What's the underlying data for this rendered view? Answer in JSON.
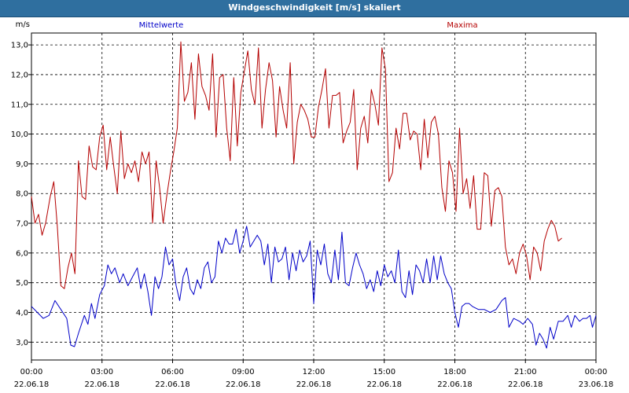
{
  "window": {
    "title": "Windgeschwindigkeit [m/s] skaliert"
  },
  "chart_data": {
    "type": "line",
    "title": "Windgeschwindigkeit [m/s] skaliert",
    "ylabel": "m/s",
    "xlabel": "",
    "ylim": [
      2.4,
      13.4
    ],
    "xlim_hours": [
      0,
      24
    ],
    "grid": true,
    "yticks": [
      "3,0",
      "4,0",
      "5,0",
      "6,0",
      "7,0",
      "8,0",
      "9,0",
      "10,0",
      "11,0",
      "12,0",
      "13,0"
    ],
    "xticks": [
      {
        "time": "00:00",
        "date": "22.06.18"
      },
      {
        "time": "03:00",
        "date": "22.06.18"
      },
      {
        "time": "06:00",
        "date": "22.06.18"
      },
      {
        "time": "09:00",
        "date": "22.06.18"
      },
      {
        "time": "12:00",
        "date": "22.06.18"
      },
      {
        "time": "15:00",
        "date": "22.06.18"
      },
      {
        "time": "18:00",
        "date": "22.06.18"
      },
      {
        "time": "21:00",
        "date": "22.06.18"
      },
      {
        "time": "00:00",
        "date": "23.06.18"
      }
    ],
    "series": [
      {
        "name": "Mittelwerte",
        "color": "#0000c8",
        "points": [
          [
            0,
            4.2
          ],
          [
            0.25,
            4.0
          ],
          [
            0.5,
            3.8
          ],
          [
            0.75,
            3.9
          ],
          [
            1,
            4.4
          ],
          [
            1.25,
            4.1
          ],
          [
            1.5,
            3.8
          ],
          [
            1.67,
            2.9
          ],
          [
            1.83,
            2.85
          ],
          [
            2,
            3.3
          ],
          [
            2.25,
            3.9
          ],
          [
            2.4,
            3.6
          ],
          [
            2.55,
            4.3
          ],
          [
            2.7,
            3.8
          ],
          [
            2.9,
            4.6
          ],
          [
            3.1,
            4.9
          ],
          [
            3.25,
            5.6
          ],
          [
            3.4,
            5.3
          ],
          [
            3.55,
            5.5
          ],
          [
            3.75,
            5.0
          ],
          [
            3.9,
            5.3
          ],
          [
            4.1,
            4.9
          ],
          [
            4.3,
            5.2
          ],
          [
            4.5,
            5.5
          ],
          [
            4.65,
            4.8
          ],
          [
            4.8,
            5.3
          ],
          [
            4.95,
            4.7
          ],
          [
            5.1,
            3.9
          ],
          [
            5.25,
            5.2
          ],
          [
            5.4,
            4.8
          ],
          [
            5.55,
            5.2
          ],
          [
            5.7,
            6.2
          ],
          [
            5.85,
            5.6
          ],
          [
            6.0,
            5.8
          ],
          [
            6.15,
            4.9
          ],
          [
            6.3,
            4.4
          ],
          [
            6.45,
            5.2
          ],
          [
            6.6,
            5.5
          ],
          [
            6.75,
            4.8
          ],
          [
            6.9,
            4.6
          ],
          [
            7.05,
            5.1
          ],
          [
            7.2,
            4.8
          ],
          [
            7.35,
            5.5
          ],
          [
            7.5,
            5.7
          ],
          [
            7.65,
            5.0
          ],
          [
            7.8,
            5.2
          ],
          [
            7.95,
            6.4
          ],
          [
            8.1,
            6.0
          ],
          [
            8.25,
            6.5
          ],
          [
            8.4,
            6.3
          ],
          [
            8.55,
            6.3
          ],
          [
            8.7,
            6.8
          ],
          [
            8.85,
            6.0
          ],
          [
            9.0,
            6.4
          ],
          [
            9.15,
            6.9
          ],
          [
            9.3,
            6.2
          ],
          [
            9.45,
            6.4
          ],
          [
            9.6,
            6.6
          ],
          [
            9.75,
            6.4
          ],
          [
            9.9,
            5.6
          ],
          [
            10.05,
            6.3
          ],
          [
            10.2,
            5.0
          ],
          [
            10.35,
            6.2
          ],
          [
            10.5,
            5.7
          ],
          [
            10.65,
            5.8
          ],
          [
            10.8,
            6.2
          ],
          [
            10.95,
            5.1
          ],
          [
            11.1,
            6.0
          ],
          [
            11.25,
            5.4
          ],
          [
            11.4,
            6.1
          ],
          [
            11.55,
            5.7
          ],
          [
            11.7,
            5.9
          ],
          [
            11.85,
            6.4
          ],
          [
            12.0,
            4.3
          ],
          [
            12.15,
            6.1
          ],
          [
            12.3,
            5.6
          ],
          [
            12.45,
            6.3
          ],
          [
            12.6,
            5.3
          ],
          [
            12.75,
            5.0
          ],
          [
            12.9,
            6.1
          ],
          [
            13.05,
            5.1
          ],
          [
            13.2,
            6.7
          ],
          [
            13.35,
            5.0
          ],
          [
            13.5,
            4.9
          ],
          [
            13.65,
            5.5
          ],
          [
            13.8,
            6.0
          ],
          [
            13.95,
            5.6
          ],
          [
            14.1,
            5.3
          ],
          [
            14.25,
            4.8
          ],
          [
            14.4,
            5.1
          ],
          [
            14.55,
            4.7
          ],
          [
            14.7,
            5.4
          ],
          [
            14.85,
            4.9
          ],
          [
            15.0,
            5.6
          ],
          [
            15.15,
            5.2
          ],
          [
            15.3,
            5.4
          ],
          [
            15.45,
            5.0
          ],
          [
            15.6,
            6.1
          ],
          [
            15.75,
            4.7
          ],
          [
            15.9,
            4.5
          ],
          [
            16.05,
            5.4
          ],
          [
            16.2,
            4.6
          ],
          [
            16.35,
            5.6
          ],
          [
            16.5,
            5.4
          ],
          [
            16.65,
            5.0
          ],
          [
            16.8,
            5.8
          ],
          [
            16.95,
            5.0
          ],
          [
            17.1,
            5.9
          ],
          [
            17.25,
            5.1
          ],
          [
            17.4,
            5.9
          ],
          [
            17.55,
            5.3
          ],
          [
            17.7,
            5.0
          ],
          [
            17.85,
            4.8
          ],
          [
            18.0,
            4.0
          ],
          [
            18.15,
            3.5
          ],
          [
            18.3,
            4.2
          ],
          [
            18.45,
            4.3
          ],
          [
            18.6,
            4.3
          ],
          [
            18.75,
            4.2
          ],
          [
            19.0,
            4.1
          ],
          [
            19.25,
            4.1
          ],
          [
            19.5,
            4.0
          ],
          [
            19.75,
            4.1
          ],
          [
            20.0,
            4.4
          ],
          [
            20.15,
            4.5
          ],
          [
            20.3,
            3.5
          ],
          [
            20.5,
            3.8
          ],
          [
            20.75,
            3.7
          ],
          [
            20.9,
            3.6
          ],
          [
            21.1,
            3.8
          ],
          [
            21.3,
            3.6
          ],
          [
            21.45,
            2.9
          ],
          [
            21.6,
            3.3
          ],
          [
            21.75,
            3.1
          ],
          [
            21.9,
            2.8
          ],
          [
            22.05,
            3.5
          ],
          [
            22.2,
            3.1
          ],
          [
            22.4,
            3.7
          ],
          [
            22.6,
            3.7
          ],
          [
            22.8,
            3.9
          ],
          [
            22.95,
            3.5
          ],
          [
            23.1,
            3.9
          ],
          [
            23.3,
            3.7
          ],
          [
            23.45,
            3.8
          ],
          [
            23.6,
            3.8
          ],
          [
            23.75,
            3.9
          ],
          [
            23.85,
            3.5
          ],
          [
            24,
            3.9
          ]
        ]
      },
      {
        "name": "Maxima",
        "color": "#b40000",
        "points": [
          [
            0,
            7.9
          ],
          [
            0.15,
            7.0
          ],
          [
            0.3,
            7.3
          ],
          [
            0.45,
            6.6
          ],
          [
            0.6,
            7.0
          ],
          [
            0.8,
            7.9
          ],
          [
            0.95,
            8.4
          ],
          [
            1.1,
            6.9
          ],
          [
            1.25,
            4.9
          ],
          [
            1.4,
            4.8
          ],
          [
            1.55,
            5.5
          ],
          [
            1.7,
            6.0
          ],
          [
            1.85,
            5.3
          ],
          [
            2.0,
            9.1
          ],
          [
            2.15,
            7.9
          ],
          [
            2.3,
            7.8
          ],
          [
            2.45,
            9.6
          ],
          [
            2.6,
            8.9
          ],
          [
            2.75,
            8.8
          ],
          [
            2.9,
            9.9
          ],
          [
            3.05,
            10.3
          ],
          [
            3.2,
            8.8
          ],
          [
            3.35,
            9.9
          ],
          [
            3.5,
            8.9
          ],
          [
            3.65,
            8.0
          ],
          [
            3.8,
            10.1
          ],
          [
            3.95,
            8.5
          ],
          [
            4.1,
            9.0
          ],
          [
            4.25,
            8.7
          ],
          [
            4.4,
            9.1
          ],
          [
            4.55,
            8.4
          ],
          [
            4.7,
            9.4
          ],
          [
            4.85,
            9.0
          ],
          [
            5.0,
            9.4
          ],
          [
            5.15,
            7.0
          ],
          [
            5.3,
            9.1
          ],
          [
            5.45,
            8.2
          ],
          [
            5.6,
            7.0
          ],
          [
            5.75,
            7.9
          ],
          [
            5.9,
            8.7
          ],
          [
            6.05,
            9.4
          ],
          [
            6.2,
            10.2
          ],
          [
            6.35,
            13.1
          ],
          [
            6.5,
            11.1
          ],
          [
            6.65,
            11.4
          ],
          [
            6.8,
            12.4
          ],
          [
            6.95,
            10.5
          ],
          [
            7.1,
            12.7
          ],
          [
            7.25,
            11.6
          ],
          [
            7.4,
            11.3
          ],
          [
            7.55,
            10.8
          ],
          [
            7.7,
            12.7
          ],
          [
            7.85,
            9.9
          ],
          [
            8.0,
            11.9
          ],
          [
            8.15,
            12.0
          ],
          [
            8.3,
            10.2
          ],
          [
            8.45,
            9.1
          ],
          [
            8.6,
            11.9
          ],
          [
            8.75,
            9.6
          ],
          [
            8.9,
            11.4
          ],
          [
            9.05,
            12.1
          ],
          [
            9.2,
            12.8
          ],
          [
            9.35,
            11.5
          ],
          [
            9.5,
            11.0
          ],
          [
            9.65,
            12.9
          ],
          [
            9.8,
            10.2
          ],
          [
            9.95,
            11.5
          ],
          [
            10.1,
            12.4
          ],
          [
            10.25,
            11.8
          ],
          [
            10.4,
            9.9
          ],
          [
            10.55,
            11.6
          ],
          [
            10.7,
            10.8
          ],
          [
            10.85,
            10.2
          ],
          [
            11.0,
            12.4
          ],
          [
            11.15,
            9.0
          ],
          [
            11.3,
            10.4
          ],
          [
            11.45,
            11.0
          ],
          [
            11.6,
            10.8
          ],
          [
            11.75,
            10.5
          ],
          [
            11.9,
            9.9
          ],
          [
            12.05,
            9.9
          ],
          [
            12.2,
            10.9
          ],
          [
            12.35,
            11.5
          ],
          [
            12.5,
            12.2
          ],
          [
            12.65,
            10.2
          ],
          [
            12.8,
            11.3
          ],
          [
            12.95,
            11.3
          ],
          [
            13.1,
            11.4
          ],
          [
            13.25,
            9.7
          ],
          [
            13.4,
            10.1
          ],
          [
            13.55,
            10.4
          ],
          [
            13.7,
            11.5
          ],
          [
            13.85,
            8.8
          ],
          [
            14.0,
            10.2
          ],
          [
            14.15,
            10.6
          ],
          [
            14.3,
            9.7
          ],
          [
            14.45,
            11.5
          ],
          [
            14.6,
            11.0
          ],
          [
            14.75,
            10.3
          ],
          [
            14.9,
            12.9
          ],
          [
            15.05,
            12.2
          ],
          [
            15.2,
            8.4
          ],
          [
            15.35,
            8.7
          ],
          [
            15.5,
            10.2
          ],
          [
            15.65,
            9.5
          ],
          [
            15.8,
            10.7
          ],
          [
            15.95,
            10.7
          ],
          [
            16.1,
            9.8
          ],
          [
            16.25,
            10.1
          ],
          [
            16.4,
            10.0
          ],
          [
            16.55,
            8.8
          ],
          [
            16.7,
            10.5
          ],
          [
            16.85,
            9.2
          ],
          [
            17.0,
            10.4
          ],
          [
            17.15,
            10.6
          ],
          [
            17.3,
            10.0
          ],
          [
            17.45,
            8.2
          ],
          [
            17.6,
            7.4
          ],
          [
            17.75,
            9.1
          ],
          [
            17.9,
            8.7
          ],
          [
            18.05,
            7.4
          ],
          [
            18.2,
            10.2
          ],
          [
            18.35,
            8.0
          ],
          [
            18.5,
            8.5
          ],
          [
            18.65,
            7.5
          ],
          [
            18.8,
            8.6
          ],
          [
            18.95,
            6.8
          ],
          [
            19.1,
            6.8
          ],
          [
            19.25,
            8.7
          ],
          [
            19.4,
            8.6
          ],
          [
            19.55,
            6.9
          ],
          [
            19.7,
            8.1
          ],
          [
            19.85,
            8.2
          ],
          [
            20.0,
            7.9
          ],
          [
            20.15,
            6.2
          ],
          [
            20.3,
            5.6
          ],
          [
            20.45,
            5.8
          ],
          [
            20.6,
            5.3
          ],
          [
            20.75,
            6.0
          ],
          [
            20.9,
            6.3
          ],
          [
            21.05,
            5.9
          ],
          [
            21.2,
            5.1
          ],
          [
            21.35,
            6.2
          ],
          [
            21.5,
            6.0
          ],
          [
            21.65,
            5.4
          ],
          [
            21.8,
            6.4
          ],
          [
            21.95,
            6.8
          ],
          [
            22.1,
            7.1
          ],
          [
            22.25,
            6.9
          ],
          [
            22.4,
            6.4
          ],
          [
            22.55,
            6.5
          ]
        ]
      }
    ]
  }
}
